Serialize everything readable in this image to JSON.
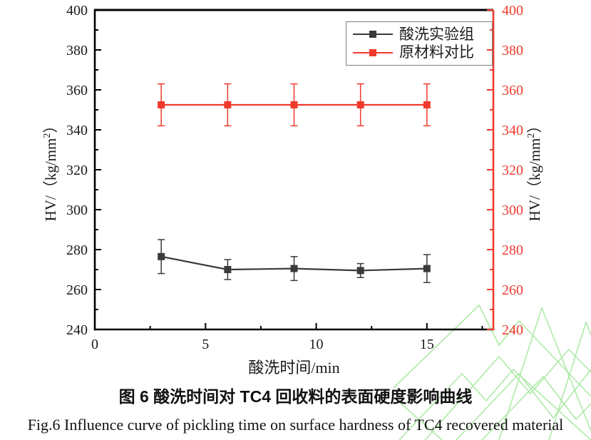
{
  "page": {
    "background": "#ffffff"
  },
  "figure": {
    "caption_zh": "图 6 酸洗时间对 TC4 回收料的表面硬度影响曲线",
    "caption_en": "Fig.6 Influence curve of pickling time on surface hardness of TC4 recovered material"
  },
  "chart_data": {
    "type": "line",
    "title": "",
    "xlabel": "酸洗时间/min",
    "ylabel": {
      "pre": "HV/（kg/mm",
      "sup": "2",
      "post": "）"
    },
    "xlim": [
      0,
      18
    ],
    "ylim": [
      240,
      400
    ],
    "x_major_ticks": [
      0,
      5,
      10,
      15
    ],
    "x_minor_ticks": [
      2.5,
      7.5,
      12.5,
      17.5
    ],
    "y_major_step": 20,
    "y_minor_step": 10,
    "grid": false,
    "legend_position": "top-right",
    "x": [
      3,
      6,
      9,
      12,
      15
    ],
    "series": [
      {
        "name": "酸洗实验组",
        "color": "#3a3a3a",
        "marker": "square",
        "values": [
          276.5,
          270,
          270.5,
          269.5,
          270.5
        ],
        "errors": [
          8.5,
          5,
          6,
          3.5,
          7
        ]
      },
      {
        "name": "原材料对比",
        "color": "#ef3a2c",
        "marker": "square",
        "values": [
          352.5,
          352.5,
          352.5,
          352.5,
          352.5
        ],
        "errors": [
          10.5,
          10.5,
          10.5,
          10.5,
          10.5
        ]
      }
    ],
    "axis_colors": {
      "left": "#000000",
      "top": "#000000",
      "bottom": "#000000",
      "right": "#ef3a2c"
    },
    "tick_label_colors": {
      "left": "#1a1a1a",
      "bottom": "#1a1a1a",
      "right": "#ef3a2c"
    },
    "watermark_color": "#a6e79f"
  }
}
